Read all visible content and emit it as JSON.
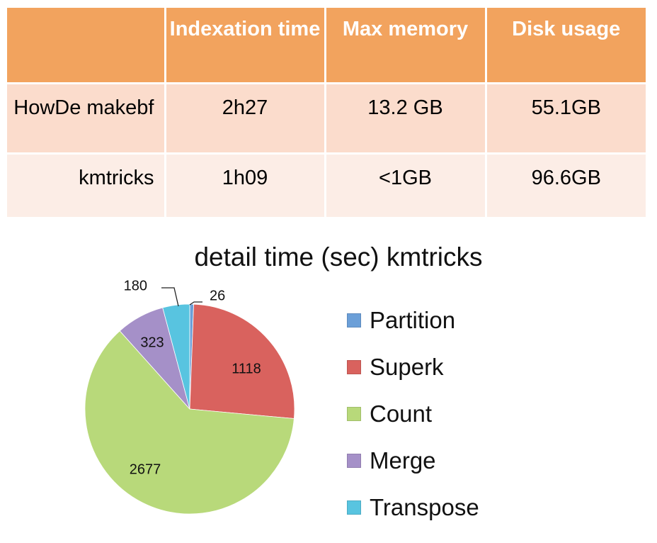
{
  "table": {
    "headers": [
      "",
      "Indexation time",
      "Max memory",
      "Disk usage"
    ],
    "rows": [
      {
        "tool": "HowDe makebf",
        "indexation_time": "2h27",
        "max_memory": "13.2 GB",
        "disk_usage": "55.1GB"
      },
      {
        "tool": "kmtricks",
        "indexation_time": "1h09",
        "max_memory": "<1GB",
        "disk_usage": "96.6GB"
      }
    ]
  },
  "colors": {
    "header_bg": "#f2a35e",
    "row_odd_bg": "#fbdccc",
    "row_even_bg": "#fcede6"
  },
  "chart_data": {
    "type": "pie",
    "title": "detail time (sec) kmtricks",
    "categories": [
      "Partition",
      "Superk",
      "Count",
      "Merge",
      "Transpose"
    ],
    "values": [
      26,
      1118,
      2677,
      323,
      180
    ],
    "data_labels": [
      "26",
      "1118",
      "2677",
      "323",
      "180"
    ],
    "colors": [
      "#6b9fd8",
      "#d9625e",
      "#b8d97a",
      "#a590c8",
      "#58c4e0"
    ],
    "start": "12 o'clock",
    "direction": "clockwise",
    "legend": "right"
  }
}
